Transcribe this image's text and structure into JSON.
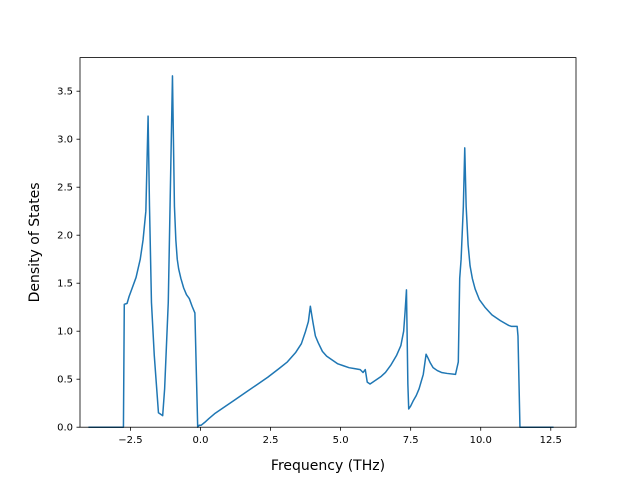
{
  "chart_data": {
    "type": "line",
    "title": "",
    "xlabel": "Frequency (THz)",
    "ylabel": "Density of States",
    "xlim": [
      -4.3,
      13.4
    ],
    "ylim": [
      0.0,
      3.85
    ],
    "xticks": [
      -2.5,
      0.0,
      2.5,
      5.0,
      7.5,
      10.0,
      12.5
    ],
    "xtick_labels": [
      "−2.5",
      "0.0",
      "2.5",
      "5.0",
      "7.5",
      "10.0",
      "12.5"
    ],
    "yticks": [
      0.0,
      0.5,
      1.0,
      1.5,
      2.0,
      2.5,
      3.0,
      3.5
    ],
    "ytick_labels": [
      "0.0",
      "0.5",
      "1.0",
      "1.5",
      "2.0",
      "2.5",
      "3.0",
      "3.5"
    ],
    "grid": false,
    "legend": false,
    "series": [
      {
        "color": "#1f77b4",
        "x": [
          -4.0,
          -2.75,
          -2.72,
          -2.62,
          -2.55,
          -2.45,
          -2.3,
          -2.15,
          -2.05,
          -1.95,
          -1.87,
          -1.82,
          -1.75,
          -1.65,
          -1.5,
          -1.35,
          -1.28,
          -1.15,
          -1.0,
          -0.93,
          -0.88,
          -0.83,
          -0.78,
          -0.7,
          -0.6,
          -0.5,
          -0.4,
          -0.3,
          -0.2,
          -0.1,
          -0.05,
          0.02,
          0.15,
          0.3,
          0.5,
          0.8,
          1.2,
          1.6,
          2.0,
          2.4,
          2.8,
          3.1,
          3.4,
          3.6,
          3.75,
          3.85,
          3.92,
          3.98,
          4.02,
          4.1,
          4.2,
          4.35,
          4.5,
          4.7,
          4.9,
          5.1,
          5.3,
          5.5,
          5.7,
          5.8,
          5.88,
          5.95,
          6.05,
          6.15,
          6.3,
          6.45,
          6.6,
          6.8,
          7.0,
          7.15,
          7.25,
          7.3,
          7.35,
          7.4,
          7.43,
          7.5,
          7.6,
          7.7,
          7.8,
          7.95,
          8.05,
          8.12,
          8.2,
          8.3,
          8.45,
          8.6,
          8.8,
          9.1,
          9.2,
          9.25,
          9.3,
          9.38,
          9.43,
          9.48,
          9.55,
          9.62,
          9.7,
          9.8,
          9.95,
          10.15,
          10.4,
          10.7,
          11.0,
          11.1,
          11.3,
          11.33,
          11.4,
          11.6,
          12.6
        ],
        "y": [
          0.0,
          0.0,
          1.28,
          1.29,
          1.36,
          1.44,
          1.56,
          1.75,
          1.95,
          2.25,
          3.24,
          2.3,
          1.3,
          0.75,
          0.15,
          0.12,
          0.4,
          1.3,
          3.66,
          2.3,
          1.95,
          1.75,
          1.65,
          1.55,
          1.45,
          1.38,
          1.34,
          1.26,
          1.19,
          0.0,
          0.02,
          0.02,
          0.05,
          0.09,
          0.14,
          0.2,
          0.28,
          0.36,
          0.44,
          0.52,
          0.61,
          0.68,
          0.78,
          0.87,
          1.0,
          1.1,
          1.26,
          1.15,
          1.08,
          0.95,
          0.88,
          0.79,
          0.74,
          0.7,
          0.66,
          0.64,
          0.62,
          0.61,
          0.6,
          0.57,
          0.6,
          0.47,
          0.45,
          0.47,
          0.5,
          0.53,
          0.57,
          0.65,
          0.75,
          0.85,
          1.0,
          1.2,
          1.43,
          0.45,
          0.19,
          0.22,
          0.28,
          0.33,
          0.4,
          0.55,
          0.76,
          0.72,
          0.67,
          0.62,
          0.59,
          0.57,
          0.56,
          0.55,
          0.68,
          1.55,
          1.75,
          2.3,
          2.91,
          2.3,
          1.9,
          1.68,
          1.55,
          1.44,
          1.33,
          1.25,
          1.17,
          1.11,
          1.06,
          1.05,
          1.05,
          0.95,
          0.0,
          0.0,
          0.0
        ]
      }
    ]
  }
}
